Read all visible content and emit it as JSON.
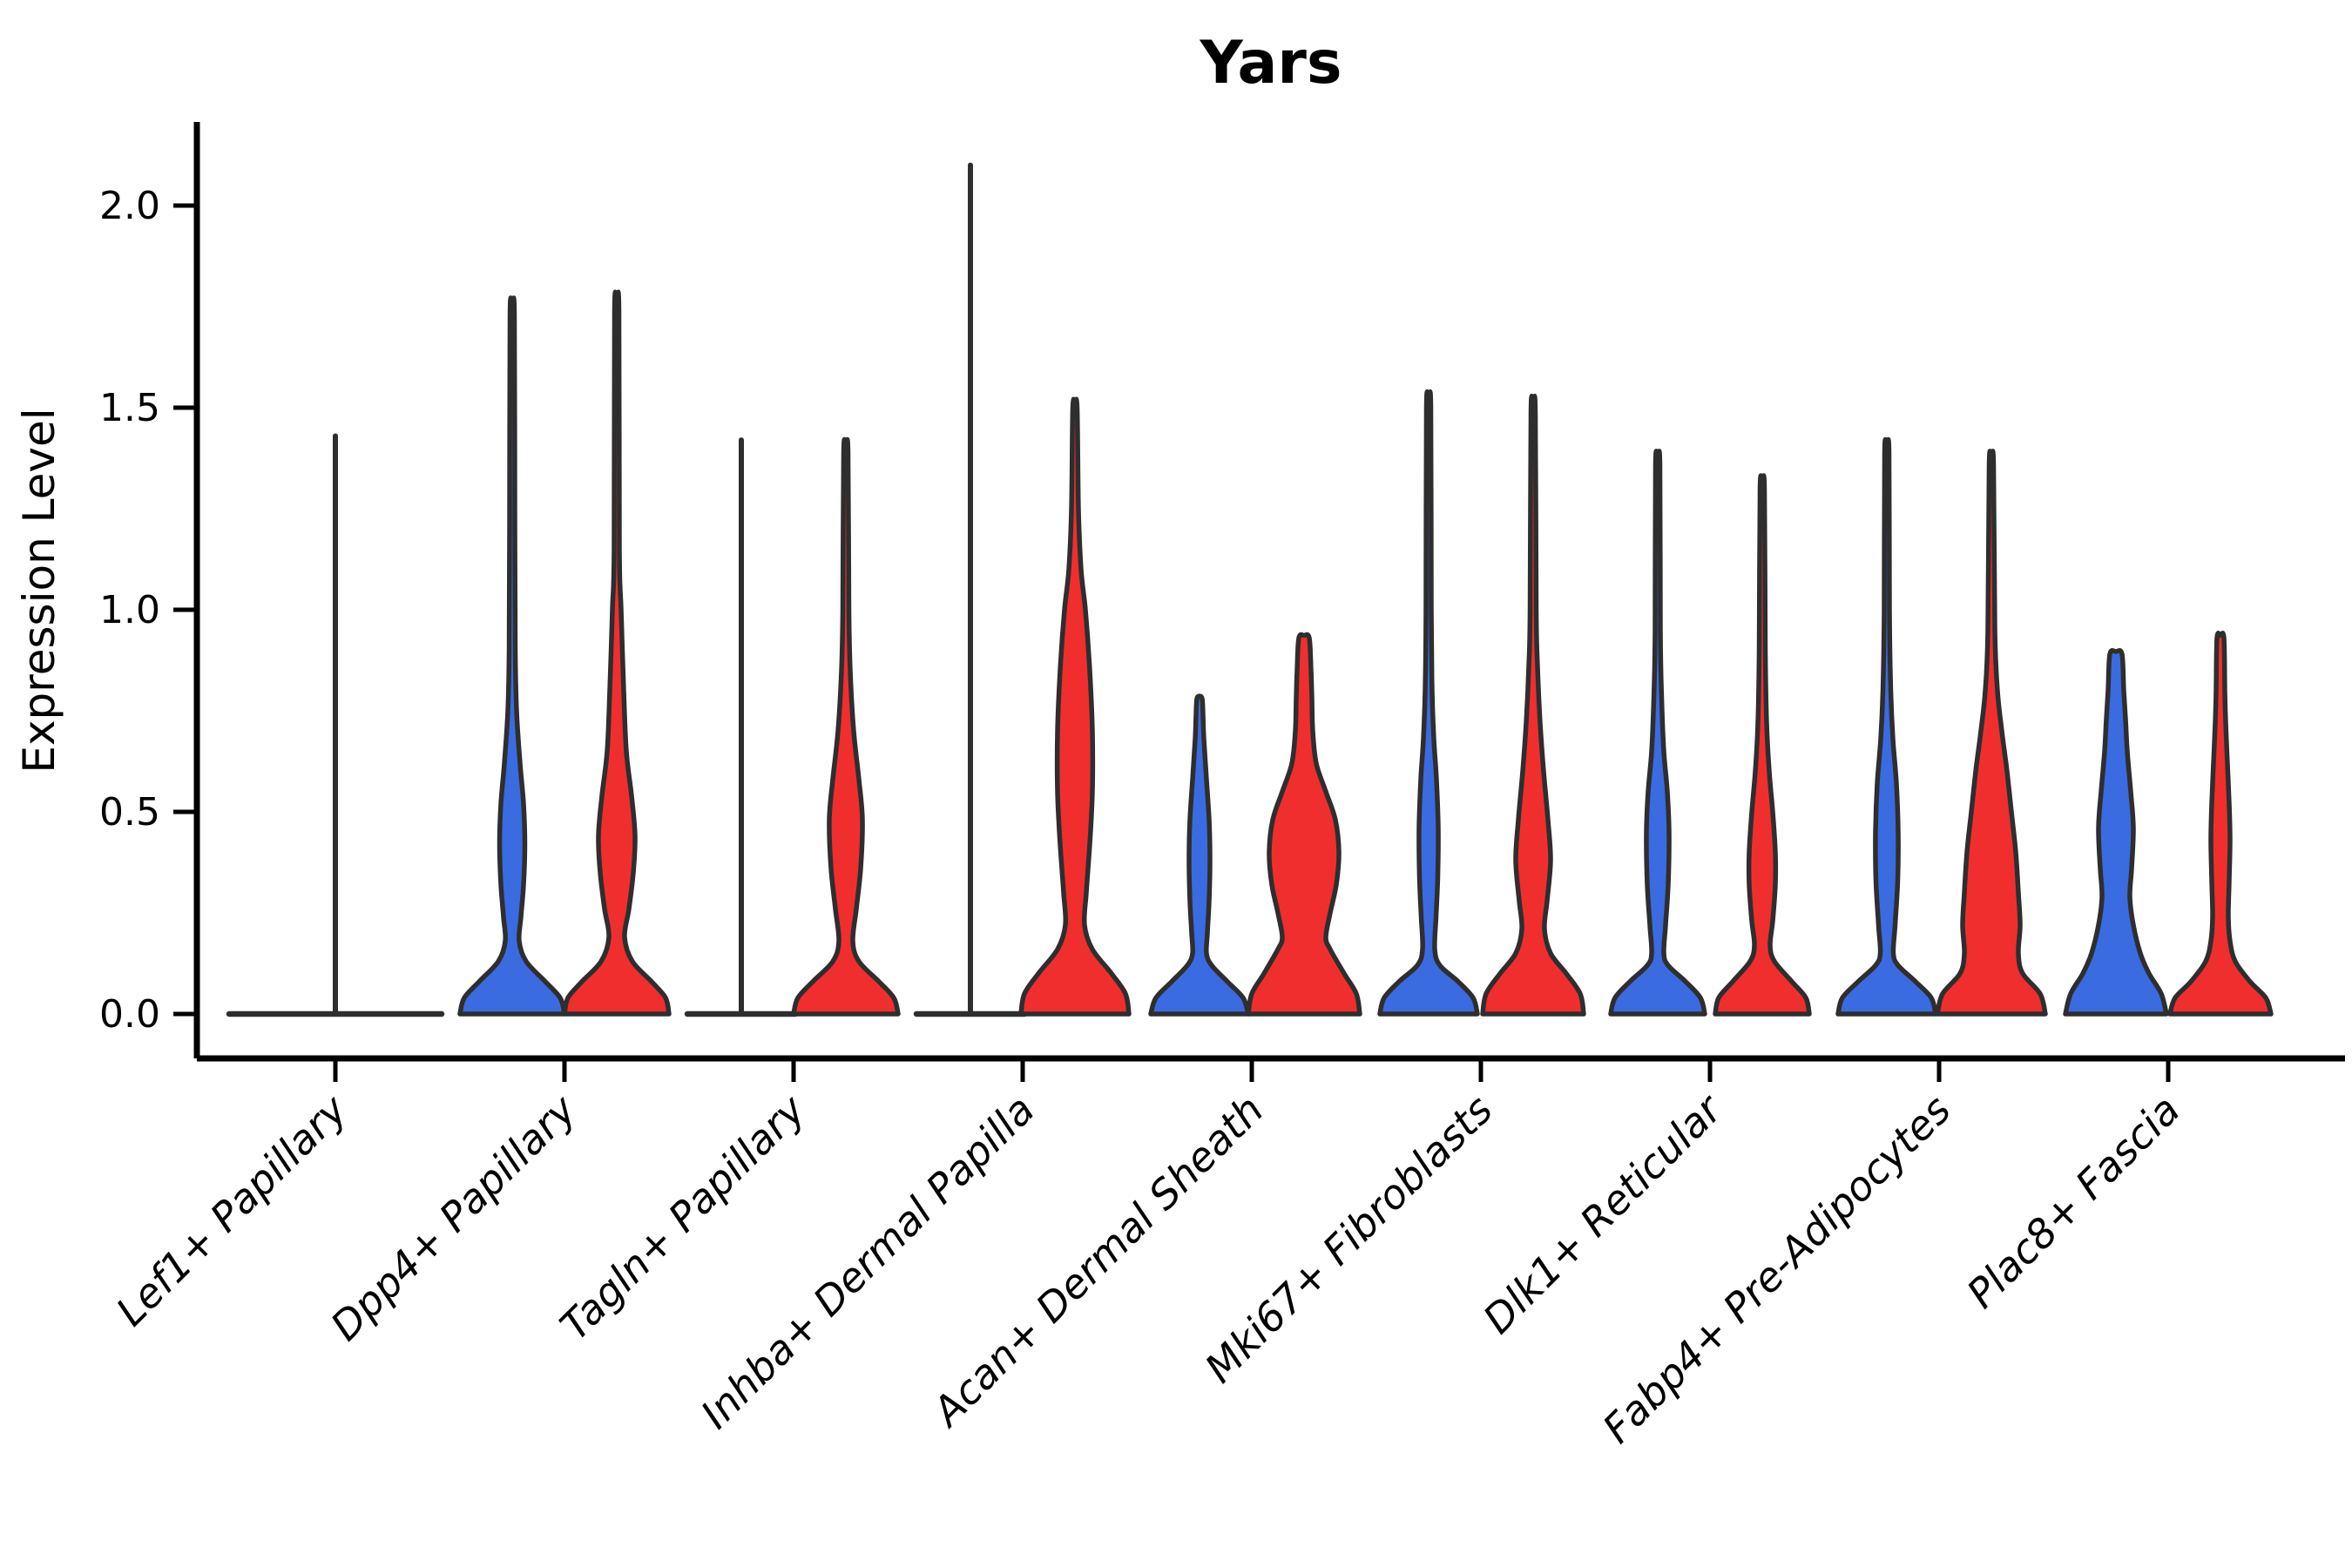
{
  "chart_data": {
    "type": "violin",
    "title": "Yars",
    "xlabel": "",
    "ylabel": "Expression Level",
    "ylim": [
      0,
      2.21
    ],
    "yticks": [
      "0.0",
      "0.5",
      "1.0",
      "1.5",
      "2.0"
    ],
    "ytick_values": [
      0.0,
      0.5,
      1.0,
      1.5,
      2.0
    ],
    "x_tick_rotation": 45,
    "grid": "off",
    "legend_position": "none",
    "colors": {
      "blue_fill": "#3B6BE1",
      "red_fill": "#F12E2E",
      "outline": "#2E2E2E",
      "axis": "#000000"
    },
    "categories": [
      "Lef1+ Papillary",
      "Dpp4+ Papillary",
      "Tagln+ Papillary",
      "Inhba+ Dermal Papilla",
      "Acan+ Dermal Sheath",
      "Mki67+ Fibroblasts",
      "Dlk1+ Reticular",
      "Fabp4+ Pre-Adipocytes",
      "Plac8+ Fascia"
    ],
    "groups": [
      {
        "category": "Lef1+ Papillary",
        "violins": [
          {
            "hue": "both",
            "kind": "flat_spike",
            "offset": 0,
            "line_halfwidth": 122,
            "tip": 1.43
          }
        ]
      },
      {
        "category": "Dpp4+ Papillary",
        "violins": [
          {
            "hue": "blue",
            "kind": "density",
            "offset": -60,
            "tip": 1.73,
            "profile": [
              [
                0,
                60
              ],
              [
                0.04,
                55
              ],
              [
                0.08,
                38
              ],
              [
                0.13,
                16
              ],
              [
                0.18,
                8
              ],
              [
                0.24,
                10
              ],
              [
                0.32,
                13
              ],
              [
                0.42,
                14.5
              ],
              [
                0.52,
                13
              ],
              [
                0.62,
                9
              ],
              [
                0.75,
                5
              ],
              [
                0.9,
                3.5
              ],
              [
                1.2,
                3
              ],
              [
                1.73,
                2.5
              ]
            ]
          },
          {
            "hue": "red",
            "kind": "density",
            "offset": 60,
            "tip": 1.74,
            "profile": [
              [
                0,
                60
              ],
              [
                0.04,
                56
              ],
              [
                0.08,
                40
              ],
              [
                0.13,
                18
              ],
              [
                0.19,
                9
              ],
              [
                0.26,
                14
              ],
              [
                0.35,
                19
              ],
              [
                0.44,
                21
              ],
              [
                0.54,
                17
              ],
              [
                0.65,
                11
              ],
              [
                0.8,
                8
              ],
              [
                1.0,
                5
              ],
              [
                1.15,
                3
              ],
              [
                1.74,
                2.5
              ]
            ]
          }
        ]
      },
      {
        "category": "Tagln+ Papillary",
        "violins": [
          {
            "hue": "blue",
            "kind": "flat_spike",
            "offset": -60,
            "line_halfwidth": 62,
            "tip": 1.42
          },
          {
            "hue": "red",
            "kind": "density",
            "offset": 60,
            "tip": 1.39,
            "profile": [
              [
                0,
                60
              ],
              [
                0.04,
                55
              ],
              [
                0.08,
                38
              ],
              [
                0.13,
                15
              ],
              [
                0.18,
                8
              ],
              [
                0.26,
                12
              ],
              [
                0.36,
                17
              ],
              [
                0.48,
                19
              ],
              [
                0.58,
                15
              ],
              [
                0.7,
                9
              ],
              [
                0.85,
                5
              ],
              [
                1.0,
                3.5
              ],
              [
                1.39,
                2.5
              ]
            ]
          }
        ]
      },
      {
        "category": "Inhba+ Dermal Papilla",
        "violins": [
          {
            "hue": "blue",
            "kind": "flat_spike",
            "offset": -60,
            "line_halfwidth": 62,
            "tip": 2.1
          },
          {
            "hue": "red",
            "kind": "density",
            "offset": 60,
            "tip": 1.5,
            "profile": [
              [
                0,
                62
              ],
              [
                0.05,
                58
              ],
              [
                0.1,
                42
              ],
              [
                0.16,
                20
              ],
              [
                0.22,
                11
              ],
              [
                0.3,
                13
              ],
              [
                0.42,
                17
              ],
              [
                0.55,
                20
              ],
              [
                0.7,
                20
              ],
              [
                0.85,
                17
              ],
              [
                1.0,
                12
              ],
              [
                1.1,
                7
              ],
              [
                1.25,
                4
              ],
              [
                1.5,
                2.5
              ]
            ]
          }
        ]
      },
      {
        "category": "Acan+ Dermal Sheath",
        "violins": [
          {
            "hue": "blue",
            "kind": "density",
            "offset": -60,
            "tip": 0.78,
            "profile": [
              [
                0,
                56
              ],
              [
                0.04,
                50
              ],
              [
                0.08,
                32
              ],
              [
                0.12,
                14
              ],
              [
                0.15,
                8
              ],
              [
                0.2,
                9
              ],
              [
                0.28,
                11
              ],
              [
                0.38,
                12
              ],
              [
                0.48,
                11
              ],
              [
                0.58,
                8
              ],
              [
                0.68,
                5
              ],
              [
                0.74,
                4
              ],
              [
                0.78,
                3
              ]
            ]
          },
          {
            "hue": "red",
            "kind": "density",
            "offset": 60,
            "tip": 0.93,
            "profile": [
              [
                0,
                64
              ],
              [
                0.05,
                60
              ],
              [
                0.1,
                46
              ],
              [
                0.16,
                30
              ],
              [
                0.19,
                25
              ],
              [
                0.25,
                30
              ],
              [
                0.32,
                37
              ],
              [
                0.4,
                40
              ],
              [
                0.48,
                36
              ],
              [
                0.55,
                25
              ],
              [
                0.62,
                14
              ],
              [
                0.7,
                10
              ],
              [
                0.78,
                9
              ],
              [
                0.85,
                8
              ],
              [
                0.93,
                6
              ]
            ]
          }
        ]
      },
      {
        "category": "Mki67+ Fibroblasts",
        "violins": [
          {
            "hue": "blue",
            "kind": "density",
            "offset": -60,
            "tip": 1.5,
            "profile": [
              [
                0,
                56
              ],
              [
                0.04,
                51
              ],
              [
                0.08,
                34
              ],
              [
                0.12,
                13
              ],
              [
                0.16,
                7
              ],
              [
                0.24,
                8.5
              ],
              [
                0.34,
                10.5
              ],
              [
                0.46,
                11
              ],
              [
                0.58,
                9
              ],
              [
                0.68,
                6
              ],
              [
                0.8,
                4
              ],
              [
                1.0,
                3
              ],
              [
                1.5,
                2.5
              ]
            ]
          },
          {
            "hue": "red",
            "kind": "density",
            "offset": 60,
            "tip": 1.49,
            "profile": [
              [
                0,
                58
              ],
              [
                0.05,
                54
              ],
              [
                0.1,
                38
              ],
              [
                0.15,
                20
              ],
              [
                0.21,
                13
              ],
              [
                0.28,
                16
              ],
              [
                0.38,
                20
              ],
              [
                0.48,
                17
              ],
              [
                0.6,
                12
              ],
              [
                0.72,
                8
              ],
              [
                0.86,
                5
              ],
              [
                1.0,
                3.5
              ],
              [
                1.49,
                2.5
              ]
            ]
          }
        ]
      },
      {
        "category": "Dlk1+ Reticular",
        "violins": [
          {
            "hue": "blue",
            "kind": "density",
            "offset": -60,
            "tip": 1.36,
            "profile": [
              [
                0,
                54
              ],
              [
                0.04,
                49
              ],
              [
                0.08,
                32
              ],
              [
                0.12,
                12
              ],
              [
                0.15,
                7
              ],
              [
                0.22,
                9
              ],
              [
                0.32,
                12
              ],
              [
                0.45,
                13
              ],
              [
                0.55,
                11
              ],
              [
                0.65,
                7
              ],
              [
                0.78,
                4.5
              ],
              [
                0.95,
                3
              ],
              [
                1.36,
                2.5
              ]
            ]
          },
          {
            "hue": "red",
            "kind": "density",
            "offset": 60,
            "tip": 1.3,
            "profile": [
              [
                0,
                54
              ],
              [
                0.04,
                50
              ],
              [
                0.08,
                34
              ],
              [
                0.13,
                14
              ],
              [
                0.17,
                9
              ],
              [
                0.23,
                12
              ],
              [
                0.32,
                15
              ],
              [
                0.4,
                15
              ],
              [
                0.5,
                12
              ],
              [
                0.6,
                8
              ],
              [
                0.72,
                5
              ],
              [
                0.9,
                3.5
              ],
              [
                1.3,
                2.5
              ]
            ]
          }
        ]
      },
      {
        "category": "Fabp4+ Pre-Adipocytes",
        "violins": [
          {
            "hue": "blue",
            "kind": "density",
            "offset": -60,
            "tip": 1.39,
            "profile": [
              [
                0,
                56
              ],
              [
                0.04,
                51
              ],
              [
                0.08,
                33
              ],
              [
                0.12,
                13
              ],
              [
                0.15,
                7.5
              ],
              [
                0.22,
                9.5
              ],
              [
                0.33,
                12.5
              ],
              [
                0.45,
                13
              ],
              [
                0.57,
                11
              ],
              [
                0.68,
                7
              ],
              [
                0.8,
                4.5
              ],
              [
                1.0,
                3
              ],
              [
                1.39,
                2.5
              ]
            ]
          },
          {
            "hue": "red",
            "kind": "density",
            "offset": 60,
            "tip": 1.36,
            "profile": [
              [
                0,
                62
              ],
              [
                0.05,
                56
              ],
              [
                0.1,
                36
              ],
              [
                0.15,
                31
              ],
              [
                0.22,
                33
              ],
              [
                0.3,
                31
              ],
              [
                0.4,
                28
              ],
              [
                0.5,
                23
              ],
              [
                0.6,
                18
              ],
              [
                0.7,
                12
              ],
              [
                0.8,
                7
              ],
              [
                0.95,
                4
              ],
              [
                1.36,
                2.5
              ]
            ]
          }
        ]
      },
      {
        "category": "Plac8+ Fascia",
        "violins": [
          {
            "hue": "blue",
            "kind": "density",
            "offset": -60,
            "tip": 0.89,
            "profile": [
              [
                0,
                58
              ],
              [
                0.05,
                52
              ],
              [
                0.1,
                38
              ],
              [
                0.15,
                28
              ],
              [
                0.22,
                20
              ],
              [
                0.29,
                16
              ],
              [
                0.36,
                18
              ],
              [
                0.46,
                20
              ],
              [
                0.55,
                17
              ],
              [
                0.65,
                13
              ],
              [
                0.73,
                11
              ],
              [
                0.8,
                9
              ],
              [
                0.89,
                7
              ]
            ]
          },
          {
            "hue": "red",
            "kind": "density",
            "offset": 60,
            "tip": 0.93,
            "profile": [
              [
                0,
                58
              ],
              [
                0.04,
                52
              ],
              [
                0.08,
                34
              ],
              [
                0.13,
                17
              ],
              [
                0.18,
                11
              ],
              [
                0.24,
                9
              ],
              [
                0.33,
                10
              ],
              [
                0.43,
                11
              ],
              [
                0.52,
                10
              ],
              [
                0.62,
                8
              ],
              [
                0.72,
                6
              ],
              [
                0.8,
                5
              ],
              [
                0.93,
                4
              ]
            ]
          }
        ]
      }
    ]
  }
}
